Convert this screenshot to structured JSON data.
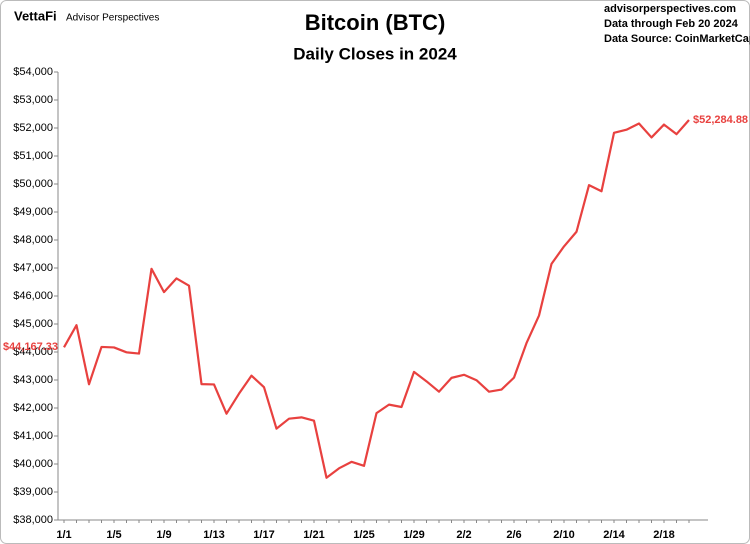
{
  "chart_data": {
    "type": "line",
    "title": "Bitcoin (BTC)",
    "subtitle": "Daily Closes in 2024",
    "brand": "VettaFi",
    "brand_tagline": "Advisor Perspectives",
    "notes": [
      "advisorperspectives.com",
      "Data through Feb 20 2024",
      "Data Source: CoinMarketCap"
    ],
    "categories": [
      "1/1",
      null,
      null,
      null,
      "1/5",
      null,
      null,
      null,
      "1/9",
      null,
      null,
      null,
      "1/13",
      null,
      null,
      null,
      "1/17",
      null,
      null,
      null,
      "1/21",
      null,
      null,
      null,
      "1/25",
      null,
      null,
      null,
      "1/29",
      null,
      null,
      null,
      "2/2",
      null,
      null,
      null,
      "2/6",
      null,
      null,
      null,
      "2/10",
      null,
      null,
      null,
      "2/14",
      null,
      null,
      null,
      "2/18",
      null,
      null
    ],
    "series": [
      {
        "name": "BTC",
        "color": "#e8413f",
        "values": [
          44167.33,
          44957.97,
          42848.18,
          44179.92,
          44162.69,
          43989.19,
          43943.1,
          46970.5,
          46139.73,
          46627.78,
          46368.59,
          42853.17,
          42842.38,
          41796.27,
          42511.97,
          43154.95,
          42742.65,
          41262.06,
          41618.41,
          41665.59,
          41545.79,
          39507.37,
          39845.55,
          40077.07,
          39933.81,
          41816.87,
          42120.05,
          42035.59,
          43288.25,
          42952.61,
          42582.61,
          43075.77,
          43185.86,
          42992.25,
          42583.58,
          42658.67,
          43084.67,
          44318.22,
          45301.57,
          47147.2,
          47771.28,
          48293.92,
          49958.22,
          49742.44,
          51826.7,
          51938.55,
          52160.2,
          51662.99,
          52122.55,
          51779.14,
          52284.88
        ],
        "value_labels": [
          "$44,167.33",
          null,
          null,
          null,
          null,
          null,
          null,
          null,
          null,
          null,
          null,
          null,
          null,
          null,
          null,
          null,
          null,
          null,
          null,
          null,
          null,
          null,
          null,
          null,
          null,
          null,
          null,
          null,
          null,
          null,
          null,
          null,
          null,
          null,
          null,
          null,
          null,
          null,
          null,
          null,
          null,
          null,
          null,
          null,
          null,
          null,
          null,
          null,
          null,
          null,
          "$52,284.88"
        ]
      }
    ],
    "ylim": [
      38000,
      54000
    ],
    "yticks": [
      {
        "value": 38000,
        "label": "$38,000"
      },
      {
        "value": 39000,
        "label": "$39,000"
      },
      {
        "value": 40000,
        "label": "$40,000"
      },
      {
        "value": 41000,
        "label": "$41,000"
      },
      {
        "value": 42000,
        "label": "$42,000"
      },
      {
        "value": 43000,
        "label": "$43,000"
      },
      {
        "value": 44000,
        "label": "$44,000"
      },
      {
        "value": 45000,
        "label": "$45,000"
      },
      {
        "value": 46000,
        "label": "$46,000"
      },
      {
        "value": 47000,
        "label": "$47,000"
      },
      {
        "value": 48000,
        "label": "$48,000"
      },
      {
        "value": 49000,
        "label": "$49,000"
      },
      {
        "value": 50000,
        "label": "$50,000"
      },
      {
        "value": 51000,
        "label": "$51,000"
      },
      {
        "value": 52000,
        "label": "$52,000"
      },
      {
        "value": 53000,
        "label": "$53,000"
      },
      {
        "value": 54000,
        "label": "$54,000"
      }
    ],
    "grid": false
  }
}
